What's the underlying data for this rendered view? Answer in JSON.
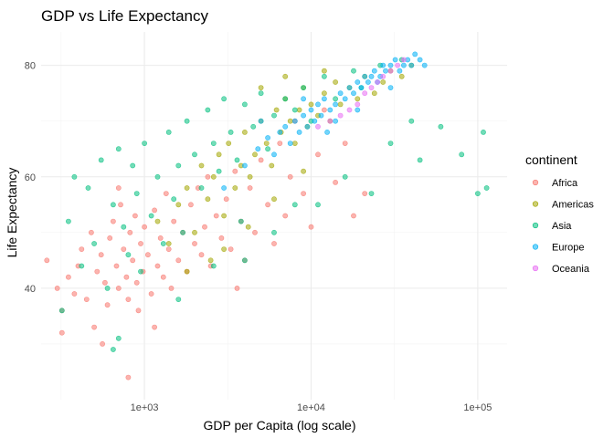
{
  "chart_data": {
    "type": "scatter",
    "title": "GDP vs Life Expectancy",
    "xlabel": "GDP per Capita (log scale)",
    "ylabel": "Life Expectancy",
    "x_scale": "log10",
    "xlim": [
      240,
      150000
    ],
    "ylim": [
      20,
      86
    ],
    "x_ticks": [
      {
        "value": 1000,
        "label": "1e+03"
      },
      {
        "value": 10000,
        "label": "1e+04"
      },
      {
        "value": 100000,
        "label": "1e+05"
      }
    ],
    "y_ticks": [
      {
        "value": 40,
        "label": "40"
      },
      {
        "value": 60,
        "label": "60"
      },
      {
        "value": 80,
        "label": "80"
      }
    ],
    "grid": true,
    "point_opacity": 0.55,
    "legend": {
      "title": "continent",
      "position": "right"
    },
    "series": [
      {
        "name": "Africa",
        "color": "#F8766D",
        "points": [
          [
            260,
            45
          ],
          [
            300,
            40
          ],
          [
            320,
            36
          ],
          [
            350,
            42
          ],
          [
            380,
            39
          ],
          [
            400,
            44
          ],
          [
            420,
            47
          ],
          [
            450,
            38
          ],
          [
            480,
            50
          ],
          [
            500,
            33
          ],
          [
            520,
            43
          ],
          [
            550,
            46
          ],
          [
            580,
            41
          ],
          [
            600,
            37
          ],
          [
            620,
            49
          ],
          [
            650,
            52
          ],
          [
            680,
            44
          ],
          [
            700,
            40
          ],
          [
            720,
            55
          ],
          [
            750,
            47
          ],
          [
            780,
            42
          ],
          [
            800,
            38
          ],
          [
            820,
            50
          ],
          [
            850,
            45
          ],
          [
            880,
            53
          ],
          [
            900,
            41
          ],
          [
            920,
            36
          ],
          [
            950,
            48
          ],
          [
            980,
            43
          ],
          [
            1000,
            51
          ],
          [
            1050,
            46
          ],
          [
            1100,
            39
          ],
          [
            1150,
            54
          ],
          [
            1200,
            44
          ],
          [
            1250,
            49
          ],
          [
            1300,
            42
          ],
          [
            1350,
            57
          ],
          [
            1400,
            47
          ],
          [
            1450,
            40
          ],
          [
            1500,
            52
          ],
          [
            1600,
            45
          ],
          [
            1700,
            50
          ],
          [
            1800,
            43
          ],
          [
            1900,
            55
          ],
          [
            2000,
            48
          ],
          [
            2100,
            58
          ],
          [
            2200,
            46
          ],
          [
            2300,
            51
          ],
          [
            2400,
            60
          ],
          [
            2500,
            44
          ],
          [
            2700,
            53
          ],
          [
            2900,
            49
          ],
          [
            3100,
            56
          ],
          [
            3300,
            47
          ],
          [
            3500,
            61
          ],
          [
            3800,
            52
          ],
          [
            4000,
            45
          ],
          [
            4300,
            58
          ],
          [
            4600,
            50
          ],
          [
            5000,
            63
          ],
          [
            5500,
            55
          ],
          [
            6000,
            48
          ],
          [
            6500,
            66
          ],
          [
            7000,
            53
          ],
          [
            7500,
            60
          ],
          [
            8000,
            70
          ],
          [
            9000,
            57
          ],
          [
            10000,
            51
          ],
          [
            11000,
            64
          ],
          [
            12000,
            72
          ],
          [
            14000,
            59
          ],
          [
            16000,
            66
          ],
          [
            18000,
            53
          ],
          [
            21000,
            57
          ],
          [
            320,
            32
          ],
          [
            560,
            30
          ],
          [
            800,
            24
          ],
          [
            1150,
            33
          ],
          [
            700,
            58
          ],
          [
            3600,
            40
          ]
        ]
      },
      {
        "name": "Americas",
        "color": "#A3A500",
        "points": [
          [
            1200,
            52
          ],
          [
            1400,
            48
          ],
          [
            1600,
            55
          ],
          [
            1800,
            58
          ],
          [
            2000,
            50
          ],
          [
            2200,
            62
          ],
          [
            2400,
            56
          ],
          [
            2600,
            60
          ],
          [
            2800,
            64
          ],
          [
            3000,
            53
          ],
          [
            3200,
            66
          ],
          [
            3500,
            58
          ],
          [
            3800,
            62
          ],
          [
            4000,
            68
          ],
          [
            4300,
            60
          ],
          [
            4600,
            64
          ],
          [
            5000,
            70
          ],
          [
            5400,
            66
          ],
          [
            5800,
            62
          ],
          [
            6200,
            72
          ],
          [
            6600,
            68
          ],
          [
            7000,
            74
          ],
          [
            7500,
            70
          ],
          [
            8000,
            66
          ],
          [
            8500,
            72
          ],
          [
            9000,
            76
          ],
          [
            9500,
            69
          ],
          [
            10000,
            73
          ],
          [
            11000,
            71
          ],
          [
            12000,
            75
          ],
          [
            13000,
            70
          ],
          [
            14000,
            77
          ],
          [
            15000,
            73
          ],
          [
            17000,
            76
          ],
          [
            19000,
            74
          ],
          [
            21000,
            78
          ],
          [
            24000,
            75
          ],
          [
            27000,
            77
          ],
          [
            30000,
            79
          ],
          [
            35000,
            78
          ],
          [
            40000,
            80
          ],
          [
            2500,
            45
          ],
          [
            3000,
            47
          ],
          [
            1800,
            43
          ],
          [
            4200,
            51
          ],
          [
            6000,
            56
          ],
          [
            9000,
            61
          ],
          [
            7000,
            78
          ],
          [
            5000,
            76
          ],
          [
            12000,
            79
          ]
        ]
      },
      {
        "name": "Asia",
        "color": "#00BF7D",
        "points": [
          [
            320,
            36
          ],
          [
            350,
            52
          ],
          [
            380,
            60
          ],
          [
            420,
            44
          ],
          [
            460,
            58
          ],
          [
            500,
            48
          ],
          [
            550,
            63
          ],
          [
            600,
            40
          ],
          [
            650,
            55
          ],
          [
            700,
            31
          ],
          [
            750,
            51
          ],
          [
            800,
            46
          ],
          [
            850,
            62
          ],
          [
            900,
            57
          ],
          [
            950,
            43
          ],
          [
            1000,
            66
          ],
          [
            1100,
            53
          ],
          [
            1200,
            60
          ],
          [
            1300,
            48
          ],
          [
            1400,
            68
          ],
          [
            1500,
            56
          ],
          [
            1600,
            62
          ],
          [
            1700,
            50
          ],
          [
            1800,
            70
          ],
          [
            2000,
            64
          ],
          [
            2200,
            58
          ],
          [
            2400,
            72
          ],
          [
            2600,
            66
          ],
          [
            2800,
            61
          ],
          [
            3000,
            74
          ],
          [
            3300,
            68
          ],
          [
            3600,
            63
          ],
          [
            4000,
            73
          ],
          [
            4500,
            69
          ],
          [
            5000,
            75
          ],
          [
            5500,
            65
          ],
          [
            6000,
            71
          ],
          [
            7000,
            74
          ],
          [
            8000,
            72
          ],
          [
            9000,
            76
          ],
          [
            10000,
            70
          ],
          [
            11000,
            55
          ],
          [
            12000,
            78
          ],
          [
            14000,
            74
          ],
          [
            16000,
            60
          ],
          [
            18000,
            79
          ],
          [
            20000,
            76
          ],
          [
            23000,
            57
          ],
          [
            26000,
            80
          ],
          [
            30000,
            66
          ],
          [
            35000,
            81
          ],
          [
            40000,
            70
          ],
          [
            45000,
            63
          ],
          [
            60000,
            69
          ],
          [
            80000,
            64
          ],
          [
            100000,
            57
          ],
          [
            108000,
            68
          ],
          [
            113000,
            58
          ],
          [
            6000,
            50
          ],
          [
            8000,
            55
          ],
          [
            4000,
            45
          ],
          [
            650,
            29
          ],
          [
            1600,
            38
          ],
          [
            2600,
            44
          ],
          [
            3800,
            52
          ],
          [
            700,
            65
          ]
        ]
      },
      {
        "name": "Europe",
        "color": "#00B0F6",
        "points": [
          [
            4000,
            62
          ],
          [
            4800,
            65
          ],
          [
            5500,
            67
          ],
          [
            6000,
            64
          ],
          [
            6500,
            68
          ],
          [
            7000,
            69
          ],
          [
            7500,
            66
          ],
          [
            8000,
            70
          ],
          [
            8500,
            68
          ],
          [
            9000,
            71
          ],
          [
            9500,
            69
          ],
          [
            10000,
            72
          ],
          [
            10500,
            70
          ],
          [
            11000,
            73
          ],
          [
            11500,
            71
          ],
          [
            12000,
            74
          ],
          [
            13000,
            72
          ],
          [
            14000,
            73
          ],
          [
            15000,
            75
          ],
          [
            16000,
            74
          ],
          [
            17000,
            76
          ],
          [
            18000,
            75
          ],
          [
            19000,
            77
          ],
          [
            20000,
            76
          ],
          [
            21000,
            78
          ],
          [
            22000,
            77
          ],
          [
            23000,
            78
          ],
          [
            24000,
            79
          ],
          [
            25000,
            77
          ],
          [
            26000,
            78
          ],
          [
            27000,
            80
          ],
          [
            28000,
            79
          ],
          [
            30000,
            80
          ],
          [
            32000,
            81
          ],
          [
            34000,
            79
          ],
          [
            36000,
            80
          ],
          [
            38000,
            81
          ],
          [
            40000,
            80
          ],
          [
            42000,
            82
          ],
          [
            45000,
            81
          ],
          [
            48000,
            80
          ],
          [
            3000,
            58
          ],
          [
            5000,
            70
          ],
          [
            9000,
            74
          ],
          [
            14000,
            70
          ],
          [
            19000,
            72
          ],
          [
            30000,
            76
          ],
          [
            12500,
            68
          ]
        ]
      },
      {
        "name": "Oceania",
        "color": "#E76BF3",
        "points": [
          [
            11000,
            69
          ],
          [
            13000,
            70
          ],
          [
            15000,
            71
          ],
          [
            17000,
            72
          ],
          [
            19000,
            73
          ],
          [
            21000,
            75
          ],
          [
            23000,
            76
          ],
          [
            25000,
            77
          ],
          [
            27000,
            78
          ],
          [
            30000,
            79
          ],
          [
            33000,
            80
          ],
          [
            36000,
            81
          ]
        ]
      }
    ]
  }
}
